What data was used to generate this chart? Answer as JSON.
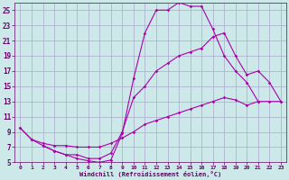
{
  "background_color": "#cce8e8",
  "grid_color": "#aaaacc",
  "line_color": "#aa00aa",
  "marker_color": "#aa00aa",
  "xlabel": "Windchill (Refroidissement éolien,°C)",
  "xlabel_color": "#660066",
  "tick_color": "#660066",
  "xlim": [
    -0.5,
    23.5
  ],
  "ylim": [
    5,
    26
  ],
  "xticks": [
    0,
    1,
    2,
    3,
    4,
    5,
    6,
    7,
    8,
    9,
    10,
    11,
    12,
    13,
    14,
    15,
    16,
    17,
    18,
    19,
    20,
    21,
    22,
    23
  ],
  "yticks": [
    5,
    7,
    9,
    11,
    13,
    15,
    17,
    19,
    21,
    23,
    25
  ],
  "curve1_x": [
    0,
    1,
    2,
    3,
    4,
    5,
    6,
    7,
    8,
    9,
    10,
    11,
    12,
    13,
    14,
    15,
    16,
    17,
    18,
    19,
    20,
    21
  ],
  "curve1_y": [
    9.5,
    8.0,
    7.2,
    6.5,
    6.0,
    5.5,
    5.2,
    5.0,
    5.3,
    8.8,
    16.0,
    22.0,
    25.0,
    25.0,
    26.0,
    25.5,
    25.5,
    22.5,
    19.0,
    17.0,
    15.5,
    13.0
  ],
  "curve2_x": [
    2,
    3,
    4,
    5,
    6,
    7,
    8,
    9,
    10,
    11,
    12,
    13,
    14,
    15,
    16,
    17,
    18,
    19,
    20,
    21,
    22,
    23
  ],
  "curve2_y": [
    7.2,
    6.5,
    6.0,
    6.0,
    5.5,
    5.5,
    6.2,
    9.0,
    13.5,
    15.0,
    17.0,
    18.0,
    19.0,
    19.5,
    20.0,
    21.5,
    22.0,
    19.0,
    16.5,
    17.0,
    15.5,
    13.0
  ],
  "curve3_x": [
    0,
    1,
    2,
    3,
    4,
    5,
    6,
    7,
    8,
    9,
    10,
    11,
    12,
    13,
    14,
    15,
    16,
    17,
    18,
    19,
    20,
    21,
    22,
    23
  ],
  "curve3_y": [
    9.5,
    8.0,
    7.5,
    7.2,
    7.2,
    7.0,
    7.0,
    7.0,
    7.5,
    8.2,
    9.0,
    10.0,
    10.5,
    11.0,
    11.5,
    12.0,
    12.5,
    13.0,
    13.5,
    13.2,
    12.5,
    13.0,
    13.0,
    13.0
  ]
}
